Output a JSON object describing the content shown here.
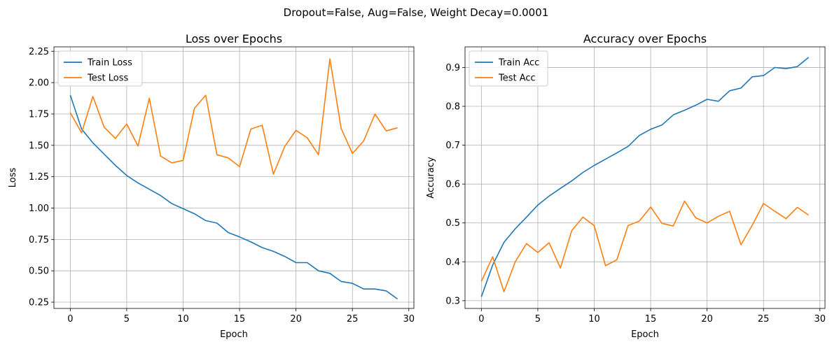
{
  "figure": {
    "suptitle": "Dropout=False, Aug=False, Weight Decay=0.0001"
  },
  "chart_data": [
    {
      "type": "line",
      "title": "Loss over Epochs",
      "xlabel": "Epoch",
      "ylabel": "Loss",
      "xlim": [
        -1.45,
        30.45
      ],
      "ylim": [
        0.2,
        2.285
      ],
      "xticks": [
        0,
        5,
        10,
        15,
        20,
        25,
        30
      ],
      "yticks": [
        0.25,
        0.5,
        0.75,
        1.0,
        1.25,
        1.5,
        1.75,
        2.0,
        2.25
      ],
      "ytick_labels": [
        "0.25",
        "0.50",
        "0.75",
        "1.00",
        "1.25",
        "1.50",
        "1.75",
        "2.00",
        "2.25"
      ],
      "grid": true,
      "legend": "top-left",
      "x": [
        0,
        1,
        2,
        3,
        4,
        5,
        6,
        7,
        8,
        9,
        10,
        11,
        12,
        13,
        14,
        15,
        16,
        17,
        18,
        19,
        20,
        21,
        22,
        23,
        24,
        25,
        26,
        27,
        28,
        29
      ],
      "series": [
        {
          "name": "Train Loss",
          "color": "#1f77b4",
          "values": [
            1.9,
            1.63,
            1.52,
            1.43,
            1.34,
            1.26,
            1.2,
            1.15,
            1.1,
            1.035,
            0.995,
            0.955,
            0.9,
            0.88,
            0.805,
            0.77,
            0.73,
            0.685,
            0.655,
            0.615,
            0.565,
            0.565,
            0.5,
            0.48,
            0.415,
            0.4,
            0.355,
            0.355,
            0.34,
            0.275
          ]
        },
        {
          "name": "Test Loss",
          "color": "#ff7f0e",
          "values": [
            1.76,
            1.6,
            1.89,
            1.645,
            1.555,
            1.67,
            1.495,
            1.875,
            1.415,
            1.36,
            1.38,
            1.795,
            1.9,
            1.425,
            1.4,
            1.33,
            1.63,
            1.66,
            1.27,
            1.49,
            1.62,
            1.56,
            1.425,
            2.19,
            1.635,
            1.435,
            1.535,
            1.75,
            1.615,
            1.64
          ]
        }
      ]
    },
    {
      "type": "line",
      "title": "Accuracy over Epochs",
      "xlabel": "Epoch",
      "ylabel": "Accuracy",
      "xlim": [
        -1.45,
        30.45
      ],
      "ylim": [
        0.28,
        0.953
      ],
      "xticks": [
        0,
        5,
        10,
        15,
        20,
        25,
        30
      ],
      "yticks": [
        0.3,
        0.4,
        0.5,
        0.6,
        0.7,
        0.8,
        0.9
      ],
      "ytick_labels": [
        "0.3",
        "0.4",
        "0.5",
        "0.6",
        "0.7",
        "0.8",
        "0.9"
      ],
      "grid": true,
      "legend": "top-left",
      "x": [
        0,
        1,
        2,
        3,
        4,
        5,
        6,
        7,
        8,
        9,
        10,
        11,
        12,
        13,
        14,
        15,
        16,
        17,
        18,
        19,
        20,
        21,
        22,
        23,
        24,
        25,
        26,
        27,
        28,
        29
      ],
      "series": [
        {
          "name": "Train Acc",
          "color": "#1f77b4",
          "values": [
            0.31,
            0.392,
            0.45,
            0.485,
            0.515,
            0.546,
            0.569,
            0.589,
            0.608,
            0.63,
            0.648,
            0.664,
            0.68,
            0.697,
            0.725,
            0.741,
            0.752,
            0.778,
            0.79,
            0.803,
            0.818,
            0.813,
            0.84,
            0.847,
            0.876,
            0.879,
            0.9,
            0.897,
            0.902,
            0.926
          ]
        },
        {
          "name": "Test Acc",
          "color": "#ff7f0e",
          "values": [
            0.35,
            0.413,
            0.323,
            0.4,
            0.447,
            0.424,
            0.449,
            0.384,
            0.48,
            0.515,
            0.493,
            0.39,
            0.405,
            0.493,
            0.505,
            0.541,
            0.499,
            0.492,
            0.556,
            0.513,
            0.5,
            0.517,
            0.53,
            0.444,
            0.494,
            0.55,
            0.53,
            0.511,
            0.54,
            0.52
          ]
        }
      ]
    }
  ]
}
